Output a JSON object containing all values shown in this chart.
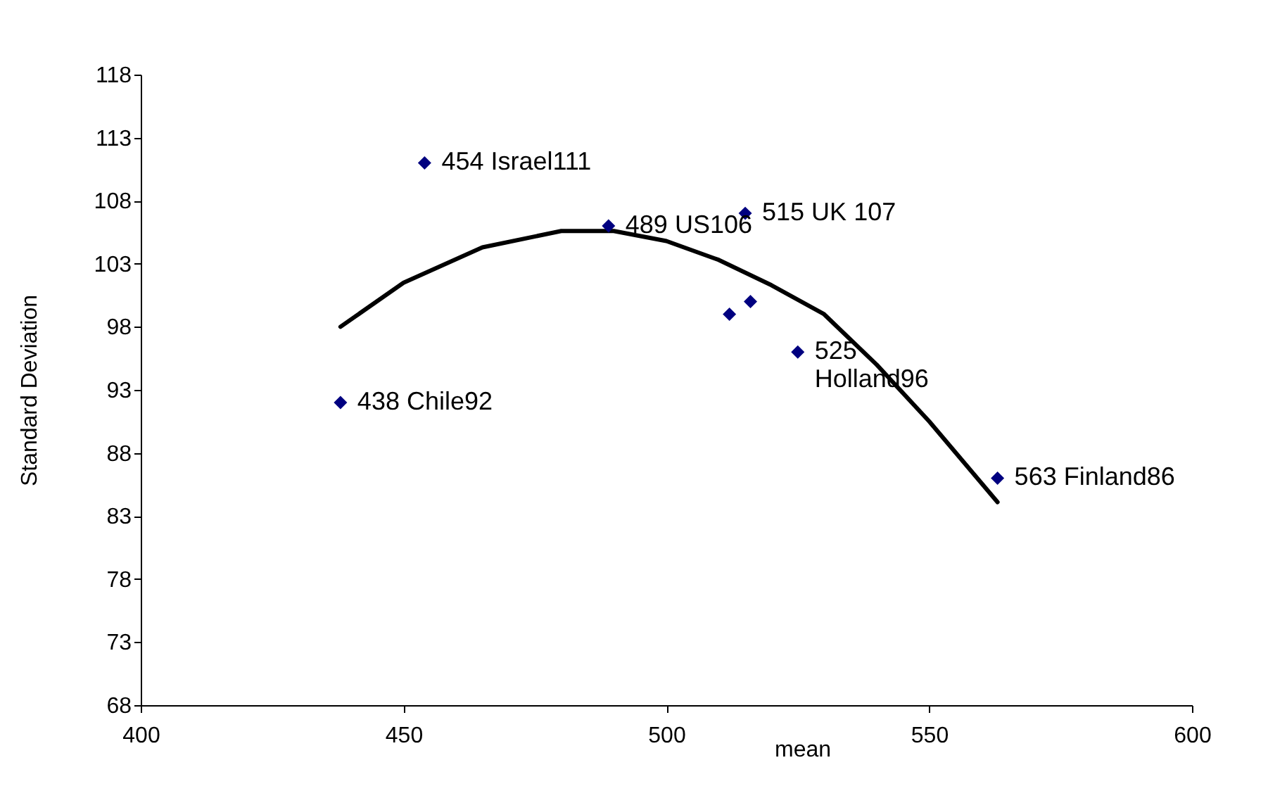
{
  "chart_data": {
    "type": "scatter",
    "xlabel": "mean",
    "ylabel": "Standard Deviation",
    "xlim": [
      400,
      600
    ],
    "xticks": [
      400,
      450,
      500,
      550,
      600
    ],
    "ylim": [
      68,
      118
    ],
    "yticks": [
      68,
      73,
      78,
      83,
      88,
      93,
      98,
      103,
      108,
      113,
      118
    ],
    "grid": false,
    "series": [
      {
        "marker": "diamond",
        "color": "#000080",
        "x": [
          454,
          489,
          515,
          438,
          525,
          563,
          512,
          516
        ],
        "values": [
          111,
          106,
          107,
          92,
          96,
          86,
          99,
          100
        ],
        "value_labels": [
          "454 Israel111",
          "489 US106",
          "515 UK 107",
          "438 Chile92",
          "525\nHolland96",
          "563 Finland86",
          null,
          null
        ]
      },
      {
        "type": "line",
        "color": "#000000",
        "x": [
          438,
          450,
          465,
          480,
          490,
          500,
          510,
          520,
          530,
          540,
          550,
          563
        ],
        "values": [
          98,
          101.5,
          104.3,
          105.6,
          105.6,
          104.8,
          103.3,
          101.3,
          99,
          95,
          90.5,
          84.1
        ]
      }
    ]
  }
}
